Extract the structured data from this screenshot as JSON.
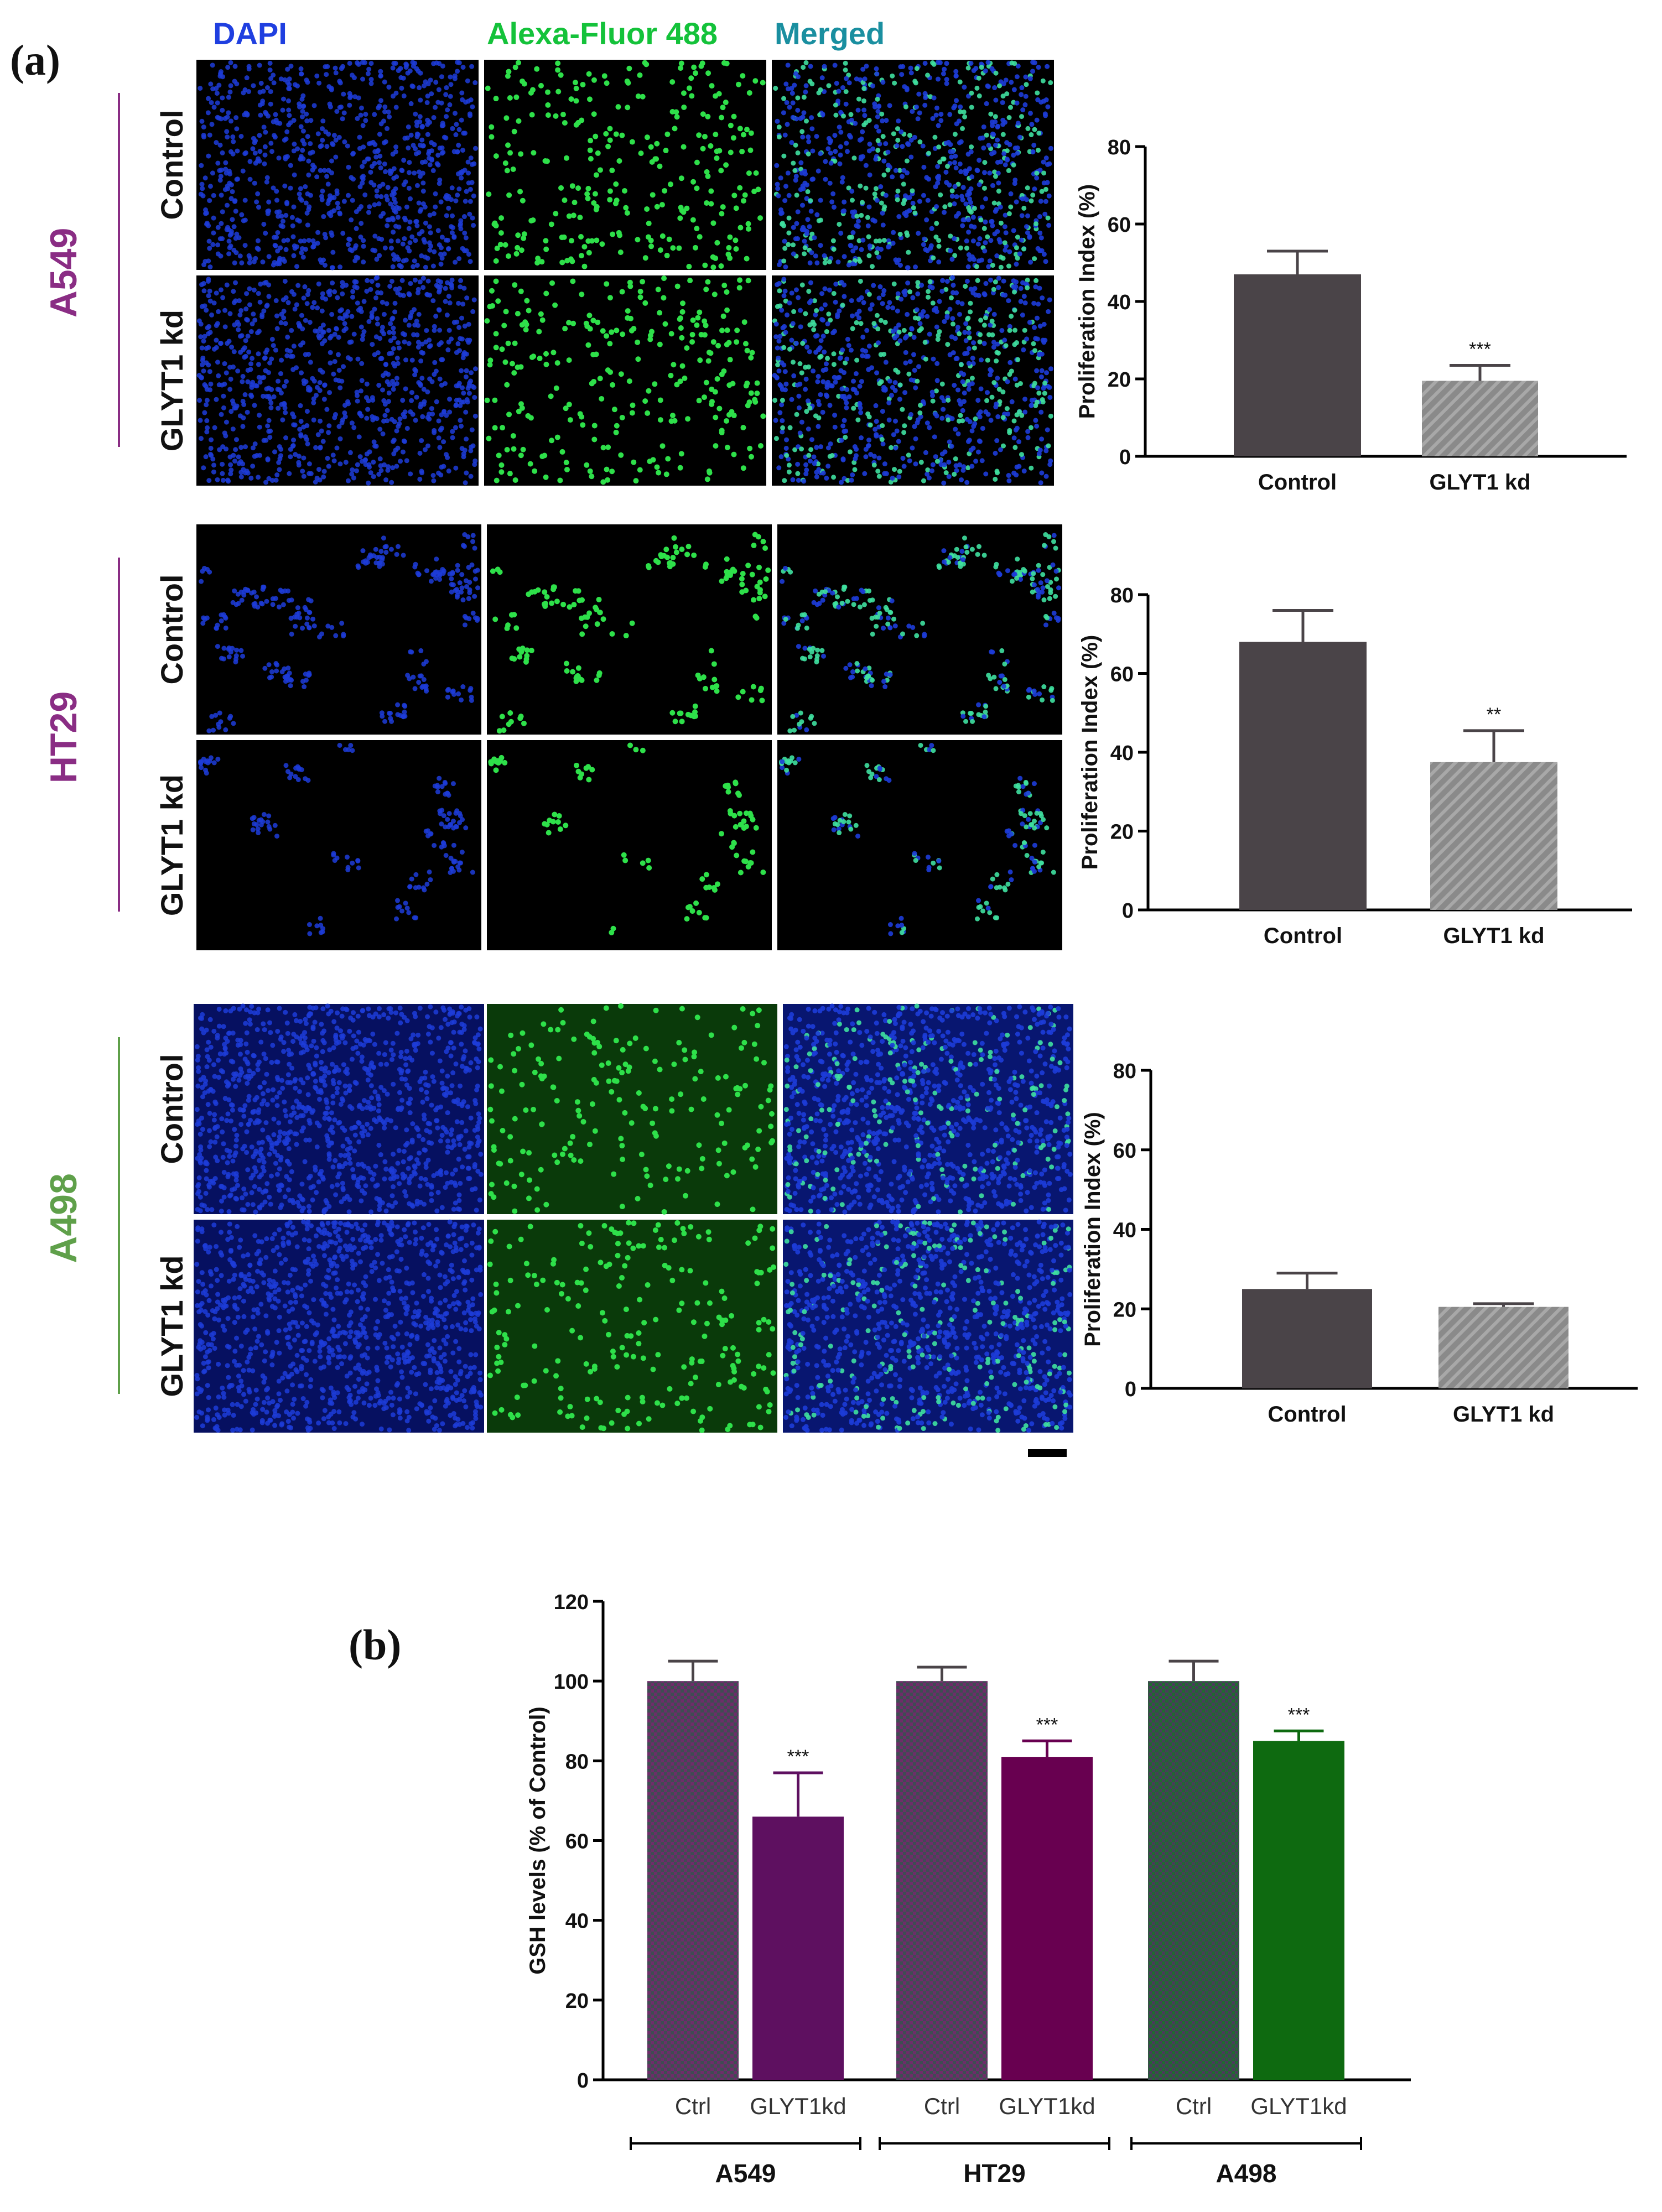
{
  "panel_labels": {
    "a": "(a)",
    "b": "(b)"
  },
  "micrograph": {
    "channels": [
      {
        "label": "DAPI",
        "color": "#1f3fe0"
      },
      {
        "label": "Alexa-Fluor 488",
        "color": "#14c23a"
      },
      {
        "label": "Merged",
        "color": "#1a8fa0"
      }
    ],
    "cell_lines": [
      {
        "name": "A549",
        "color": "#8a2d84"
      },
      {
        "name": "HT29",
        "color": "#8a2d84"
      },
      {
        "name": "A498",
        "color": "#5fa04a"
      }
    ],
    "conditions": [
      "Control",
      "GLYT1 kd"
    ]
  },
  "chart_data": [
    {
      "type": "bar",
      "cell_line": "A549",
      "categories": [
        "Control",
        "GLYT1 kd"
      ],
      "values": [
        47,
        19.5
      ],
      "errors": [
        6,
        4
      ],
      "significance": [
        "",
        "***"
      ],
      "ylabel": "Proliferation Index (%)",
      "ylim": [
        0,
        80
      ],
      "yticks": [
        0,
        20,
        40,
        60,
        80
      ],
      "colors": [
        "#4a4448",
        "#8c8c8c"
      ]
    },
    {
      "type": "bar",
      "cell_line": "HT29",
      "categories": [
        "Control",
        "GLYT1 kd"
      ],
      "values": [
        68,
        37.5
      ],
      "errors": [
        8,
        8
      ],
      "significance": [
        "",
        "**"
      ],
      "ylabel": "Proliferation Index (%)",
      "ylim": [
        0,
        80
      ],
      "yticks": [
        0,
        20,
        40,
        60,
        80
      ],
      "colors": [
        "#4a4448",
        "#8c8c8c"
      ]
    },
    {
      "type": "bar",
      "cell_line": "A498",
      "categories": [
        "Control",
        "GLYT1 kd"
      ],
      "values": [
        25,
        20.5
      ],
      "errors": [
        4,
        0.8
      ],
      "significance": [
        "",
        ""
      ],
      "ylabel": "Proliferation Index (%)",
      "ylim": [
        0,
        80
      ],
      "yticks": [
        0,
        20,
        40,
        60,
        80
      ],
      "colors": [
        "#4a4448",
        "#8c8c8c"
      ]
    },
    {
      "type": "bar",
      "categories": [
        "Ctrl",
        "GLYT1kd",
        "Ctrl",
        "GLYT1kd",
        "Ctrl",
        "GLYT1kd"
      ],
      "groups": [
        {
          "name": "A549",
          "bars": [
            0,
            1
          ]
        },
        {
          "name": "HT29",
          "bars": [
            2,
            3
          ]
        },
        {
          "name": "A498",
          "bars": [
            4,
            5
          ]
        }
      ],
      "values": [
        100,
        66,
        100,
        81,
        100,
        85
      ],
      "errors": [
        5,
        11,
        3.5,
        4,
        5,
        2.5
      ],
      "significance": [
        "",
        "***",
        "",
        "***",
        "",
        "***"
      ],
      "ylabel": "GSH levels (% of Control)",
      "ylim": [
        0,
        120
      ],
      "yticks": [
        0,
        20,
        40,
        60,
        80,
        100,
        120
      ],
      "colors": [
        "#5a3a5e",
        "#5e1060",
        "#5a3a5e",
        "#680050",
        "#2c6a36",
        "#0e6a10"
      ]
    }
  ]
}
